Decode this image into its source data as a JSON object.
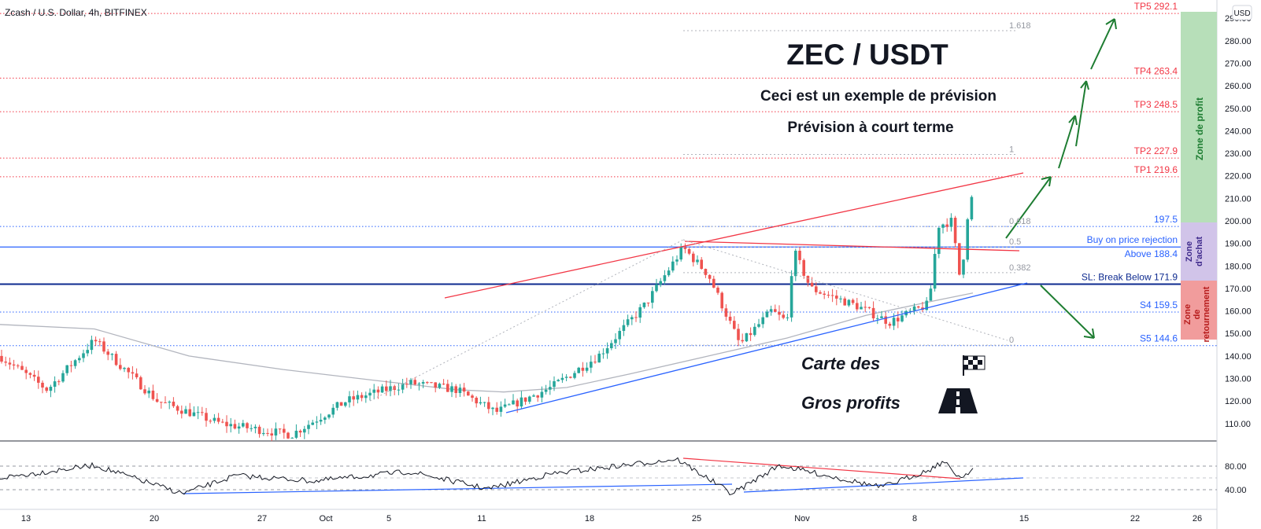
{
  "header": {
    "symbol": "Zcash / U.S. Dollar, 4h, BITFINEX"
  },
  "axis": {
    "currency": "USD"
  },
  "titles": {
    "main": "ZEC / USDT",
    "line1": "Ceci est un exemple de prévision",
    "line2": "Prévision à court terme"
  },
  "logo": {
    "line1": "Carte des",
    "line2": "Gros profits"
  },
  "zones": {
    "profit": "Zone de profit",
    "buy": "Zone d'achat",
    "reversal": "Zone de retournement"
  },
  "colors": {
    "red": "#f23645",
    "blue": "#2962ff",
    "green": "#1e7d32",
    "up": "#26a69a",
    "down": "#ef5350"
  },
  "chart_data": {
    "type": "candlestick",
    "ylim": [
      104,
      296
    ],
    "y_ticks": [
      110,
      120,
      130,
      140,
      150,
      160,
      170,
      180,
      190,
      200,
      210,
      220,
      230,
      240,
      250,
      260,
      270,
      280,
      290
    ],
    "x_ticks": [
      "13",
      "20",
      "27",
      "Oct",
      "5",
      "11",
      "18",
      "25",
      "Nov",
      "8",
      "15",
      "22",
      "26"
    ],
    "price_levels": [
      {
        "label": "TP5 292.1",
        "value": 292.1,
        "color": "#f23645"
      },
      {
        "label": "TP4 263.4",
        "value": 263.4,
        "color": "#f23645"
      },
      {
        "label": "TP3 248.5",
        "value": 248.5,
        "color": "#f23645"
      },
      {
        "label": "TP2 227.9",
        "value": 227.9,
        "color": "#f23645"
      },
      {
        "label": "TP1 219.6",
        "value": 219.6,
        "color": "#f23645"
      },
      {
        "label": "197.5",
        "value": 197.5,
        "color": "#2962ff"
      },
      {
        "label": "Buy on price rejection",
        "value": 188.4,
        "color": "#2962ff",
        "solid": true
      },
      {
        "label": "Above 188.4",
        "value": 188.4,
        "color": "#2962ff",
        "solid": true,
        "below": true
      },
      {
        "label": "SL: Break Below 171.9",
        "value": 171.9,
        "color": "#0d2a8f",
        "solid": true
      },
      {
        "label": "S4 159.5",
        "value": 159.5,
        "color": "#2962ff"
      },
      {
        "label": "S5 144.6",
        "value": 144.6,
        "color": "#2962ff"
      }
    ],
    "fib_levels": [
      {
        "label": "1.618",
        "value": 284.5
      },
      {
        "label": "1",
        "value": 229.5
      },
      {
        "label": "0.618",
        "value": 197.5
      },
      {
        "label": "0.5",
        "value": 188.4
      },
      {
        "label": "0.382",
        "value": 177
      },
      {
        "label": "0",
        "value": 144.8
      }
    ],
    "rsi_ticks": [
      80,
      40
    ]
  }
}
